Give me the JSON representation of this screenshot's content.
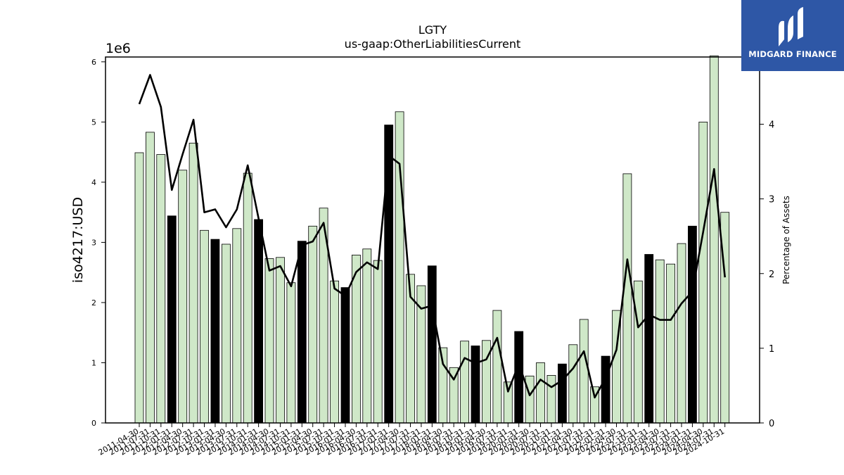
{
  "brand": {
    "name": "MIDGARD FINANCE",
    "color": "#2e57a6",
    "icon": "midgard-m-logo-icon"
  },
  "chart_data": {
    "type": "bar",
    "title": "LGTY",
    "subtitle": "us-gaap:OtherLiabilitiesCurrent",
    "ylabel": "iso4217:USD",
    "y2label": "Percentage of Assets",
    "y_multiplier_label": "1e6",
    "ylim": [
      0,
      6.08
    ],
    "y2lim": [
      0,
      4.9
    ],
    "yticks": [
      "0",
      "1",
      "2",
      "3",
      "4",
      "5",
      "6"
    ],
    "y2ticks": [
      "0",
      "1",
      "2",
      "3",
      "4"
    ],
    "grid": false,
    "colors": {
      "bar_default": "#cfe8c8",
      "bar_highlight": "#000000",
      "line": "#000000"
    },
    "categories": [
      "2011-04-30",
      "2011-07-31",
      "2011-10-31",
      "2012-01-31",
      "2012-04-30",
      "2012-07-31",
      "2012-10-31",
      "2013-01-31",
      "2013-04-30",
      "2013-07-31",
      "2013-10-31",
      "2014-01-31",
      "2014-04-30",
      "2014-07-31",
      "2014-10-31",
      "2015-01-31",
      "2015-04-30",
      "2015-07-31",
      "2015-10-31",
      "2016-01-31",
      "2016-04-30",
      "2016-07-31",
      "2016-10-31",
      "2017-01-31",
      "2017-04-30",
      "2017-07-31",
      "2017-10-31",
      "2018-01-31",
      "2018-04-30",
      "2018-07-31",
      "2018-10-31",
      "2019-01-31",
      "2019-04-30",
      "2019-07-31",
      "2019-10-31",
      "2020-01-31",
      "2020-04-30",
      "2020-07-31",
      "2020-10-31",
      "2021-01-31",
      "2021-04-30",
      "2021-07-31",
      "2021-10-31",
      "2022-01-31",
      "2022-04-30",
      "2022-07-31",
      "2022-10-31",
      "2023-01-31",
      "2023-04-30",
      "2023-07-31",
      "2023-10-31",
      "2024-01-31",
      "2024-04-30",
      "2024-07-31",
      "2024-10-31"
    ],
    "series": [
      {
        "kind": "bar",
        "unit": "1e6 USD",
        "values": [
          4.49,
          4.83,
          4.46,
          3.44,
          4.2,
          4.65,
          3.2,
          3.05,
          2.97,
          3.23,
          4.15,
          3.38,
          2.73,
          2.75,
          2.33,
          3.02,
          3.27,
          3.57,
          2.36,
          2.25,
          2.79,
          2.89,
          2.7,
          4.95,
          5.17,
          2.47,
          2.28,
          2.61,
          1.25,
          0.92,
          1.36,
          1.28,
          1.37,
          1.87,
          0.68,
          1.52,
          0.78,
          1.0,
          0.79,
          0.98,
          1.3,
          1.72,
          0.6,
          1.11,
          1.87,
          4.14,
          2.36,
          2.8,
          2.71,
          2.64,
          2.98,
          3.27,
          5.0,
          6.1,
          3.5
        ],
        "highlight": [
          false,
          false,
          false,
          true,
          false,
          false,
          false,
          true,
          false,
          false,
          false,
          true,
          false,
          false,
          false,
          true,
          false,
          false,
          false,
          true,
          false,
          false,
          false,
          true,
          false,
          false,
          false,
          true,
          false,
          false,
          false,
          true,
          false,
          false,
          false,
          true,
          false,
          false,
          false,
          true,
          false,
          false,
          false,
          true,
          false,
          false,
          false,
          true,
          false,
          false,
          false,
          true,
          false,
          false,
          false
        ]
      },
      {
        "kind": "line",
        "axis": "right",
        "values": [
          4.27,
          4.66,
          4.23,
          3.12,
          3.6,
          4.06,
          2.82,
          2.86,
          2.62,
          2.86,
          3.45,
          2.74,
          2.04,
          2.1,
          1.83,
          2.38,
          2.43,
          2.68,
          1.8,
          1.7,
          2.02,
          2.15,
          2.06,
          3.58,
          3.47,
          1.69,
          1.53,
          1.57,
          0.79,
          0.58,
          0.87,
          0.8,
          0.85,
          1.14,
          0.42,
          0.79,
          0.37,
          0.58,
          0.48,
          0.57,
          0.73,
          0.96,
          0.34,
          0.6,
          0.98,
          2.19,
          1.28,
          1.45,
          1.38,
          1.38,
          1.6,
          1.76,
          2.56,
          3.4,
          1.95
        ]
      }
    ]
  }
}
